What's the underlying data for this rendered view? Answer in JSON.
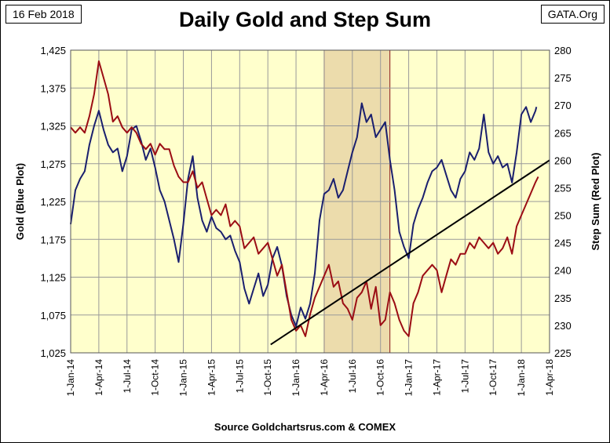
{
  "date_badge": "16 Feb 2018",
  "site_badge": "GATA.Org",
  "chart_data": {
    "type": "line",
    "title": "Daily Gold and Step Sum",
    "source": "Source Goldchartsrus.com & COMEX",
    "left_axis": {
      "label": "Gold   (Blue Plot)",
      "ylim": [
        1025,
        1425
      ],
      "ticks": [
        1025,
        1075,
        1125,
        1175,
        1225,
        1275,
        1325,
        1375,
        1425
      ],
      "tick_labels": [
        "1,025",
        "1,075",
        "1,125",
        "1,175",
        "1,225",
        "1,275",
        "1,325",
        "1,375",
        "1,425"
      ]
    },
    "right_axis": {
      "label": "Step Sum   (Red Plot)",
      "ylim": [
        225,
        280
      ],
      "ticks": [
        225,
        230,
        235,
        240,
        245,
        250,
        255,
        260,
        265,
        270,
        275,
        280
      ],
      "tick_labels": [
        "225",
        "230",
        "235",
        "240",
        "245",
        "250",
        "255",
        "260",
        "265",
        "270",
        "275",
        "280"
      ]
    },
    "x_axis": {
      "range_months": [
        0,
        51
      ],
      "tick_labels": [
        "1-Jan-14",
        "1-Apr-14",
        "1-Jul-14",
        "1-Oct-14",
        "1-Jan-15",
        "1-Apr-15",
        "1-Jul-15",
        "1-Oct-15",
        "1-Jan-16",
        "1-Apr-16",
        "1-Jul-16",
        "1-Oct-16",
        "1-Jan-17",
        "1-Apr-17",
        "1-Jul-17",
        "1-Oct-17",
        "1-Jan-18",
        "1-Apr-18"
      ]
    },
    "shaded_region": {
      "x_start": 27,
      "x_end": 34
    },
    "series": [
      {
        "name": "Gold (Blue Plot)",
        "axis": "left",
        "color": "#1a1f6e",
        "points": [
          [
            0,
            1195
          ],
          [
            0.5,
            1240
          ],
          [
            1,
            1255
          ],
          [
            1.5,
            1265
          ],
          [
            2,
            1300
          ],
          [
            2.5,
            1325
          ],
          [
            3,
            1345
          ],
          [
            3.5,
            1320
          ],
          [
            4,
            1300
          ],
          [
            4.5,
            1290
          ],
          [
            5,
            1295
          ],
          [
            5.5,
            1265
          ],
          [
            6,
            1285
          ],
          [
            6.5,
            1320
          ],
          [
            7,
            1325
          ],
          [
            7.5,
            1305
          ],
          [
            8,
            1280
          ],
          [
            8.5,
            1295
          ],
          [
            9,
            1270
          ],
          [
            9.5,
            1240
          ],
          [
            10,
            1225
          ],
          [
            10.5,
            1200
          ],
          [
            11,
            1175
          ],
          [
            11.5,
            1145
          ],
          [
            12,
            1195
          ],
          [
            12.5,
            1255
          ],
          [
            13,
            1285
          ],
          [
            13.5,
            1230
          ],
          [
            14,
            1200
          ],
          [
            14.5,
            1185
          ],
          [
            15,
            1205
          ],
          [
            15.5,
            1190
          ],
          [
            16,
            1185
          ],
          [
            16.5,
            1175
          ],
          [
            17,
            1180
          ],
          [
            17.5,
            1160
          ],
          [
            18,
            1145
          ],
          [
            18.5,
            1110
          ],
          [
            19,
            1090
          ],
          [
            19.5,
            1110
          ],
          [
            20,
            1130
          ],
          [
            20.5,
            1100
          ],
          [
            21,
            1115
          ],
          [
            21.5,
            1150
          ],
          [
            22,
            1165
          ],
          [
            22.5,
            1140
          ],
          [
            23,
            1100
          ],
          [
            23.5,
            1075
          ],
          [
            24,
            1060
          ],
          [
            24.5,
            1085
          ],
          [
            25,
            1070
          ],
          [
            25.5,
            1090
          ],
          [
            26,
            1130
          ],
          [
            26.5,
            1200
          ],
          [
            27,
            1235
          ],
          [
            27.5,
            1240
          ],
          [
            28,
            1255
          ],
          [
            28.5,
            1230
          ],
          [
            29,
            1240
          ],
          [
            29.5,
            1265
          ],
          [
            30,
            1290
          ],
          [
            30.5,
            1310
          ],
          [
            31,
            1355
          ],
          [
            31.5,
            1330
          ],
          [
            32,
            1340
          ],
          [
            32.5,
            1310
          ],
          [
            33,
            1320
          ],
          [
            33.5,
            1330
          ],
          [
            34,
            1280
          ],
          [
            34.5,
            1240
          ],
          [
            35,
            1185
          ],
          [
            35.5,
            1165
          ],
          [
            36,
            1150
          ],
          [
            36.5,
            1195
          ],
          [
            37,
            1215
          ],
          [
            37.5,
            1230
          ],
          [
            38,
            1250
          ],
          [
            38.5,
            1265
          ],
          [
            39,
            1270
          ],
          [
            39.5,
            1280
          ],
          [
            40,
            1260
          ],
          [
            40.5,
            1240
          ],
          [
            41,
            1230
          ],
          [
            41.5,
            1255
          ],
          [
            42,
            1265
          ],
          [
            42.5,
            1290
          ],
          [
            43,
            1280
          ],
          [
            43.5,
            1295
          ],
          [
            44,
            1340
          ],
          [
            44.5,
            1290
          ],
          [
            45,
            1275
          ],
          [
            45.5,
            1285
          ],
          [
            46,
            1270
          ],
          [
            46.5,
            1275
          ],
          [
            47,
            1250
          ],
          [
            47.5,
            1290
          ],
          [
            48,
            1340
          ],
          [
            48.5,
            1350
          ],
          [
            49,
            1330
          ],
          [
            49.5,
            1345
          ],
          [
            49.6,
            1350
          ]
        ]
      },
      {
        "name": "Step Sum (Red Plot)",
        "axis": "right",
        "color": "#9b0d14",
        "points": [
          [
            0,
            266
          ],
          [
            0.5,
            265
          ],
          [
            1,
            266
          ],
          [
            1.5,
            265
          ],
          [
            2,
            268
          ],
          [
            2.5,
            272
          ],
          [
            3,
            278
          ],
          [
            3.5,
            275
          ],
          [
            4,
            272
          ],
          [
            4.5,
            267
          ],
          [
            5,
            268
          ],
          [
            5.5,
            266
          ],
          [
            6,
            265
          ],
          [
            6.5,
            266
          ],
          [
            7,
            265
          ],
          [
            7.5,
            263
          ],
          [
            8,
            262
          ],
          [
            8.5,
            263
          ],
          [
            9,
            261
          ],
          [
            9.5,
            263
          ],
          [
            10,
            262
          ],
          [
            10.5,
            262
          ],
          [
            11,
            259
          ],
          [
            11.5,
            257
          ],
          [
            12,
            256
          ],
          [
            12.5,
            256
          ],
          [
            13,
            258
          ],
          [
            13.5,
            255
          ],
          [
            14,
            256
          ],
          [
            14.5,
            253
          ],
          [
            15,
            250
          ],
          [
            15.5,
            251
          ],
          [
            16,
            250
          ],
          [
            16.5,
            252
          ],
          [
            17,
            248
          ],
          [
            17.5,
            249
          ],
          [
            18,
            248
          ],
          [
            18.5,
            244
          ],
          [
            19,
            245
          ],
          [
            19.5,
            246
          ],
          [
            20,
            243
          ],
          [
            20.5,
            244
          ],
          [
            21,
            245
          ],
          [
            21.5,
            242
          ],
          [
            22,
            239
          ],
          [
            22.5,
            241
          ],
          [
            23,
            236
          ],
          [
            23.5,
            231
          ],
          [
            24,
            229
          ],
          [
            24.5,
            230
          ],
          [
            25,
            228
          ],
          [
            25.5,
            232
          ],
          [
            26,
            235
          ],
          [
            26.5,
            237
          ],
          [
            27,
            239
          ],
          [
            27.5,
            241
          ],
          [
            28,
            237
          ],
          [
            28.5,
            238
          ],
          [
            29,
            234
          ],
          [
            29.5,
            233
          ],
          [
            30,
            231
          ],
          [
            30.5,
            235
          ],
          [
            31,
            236
          ],
          [
            31.5,
            238
          ],
          [
            32,
            233
          ],
          [
            32.5,
            237
          ],
          [
            33,
            230
          ],
          [
            33.5,
            231
          ],
          [
            34,
            236
          ],
          [
            34.5,
            234
          ],
          [
            35,
            231
          ],
          [
            35.5,
            229
          ],
          [
            36,
            228
          ],
          [
            36.5,
            234
          ],
          [
            37,
            236
          ],
          [
            37.5,
            239
          ],
          [
            38,
            240
          ],
          [
            38.5,
            241
          ],
          [
            39,
            240
          ],
          [
            39.5,
            236
          ],
          [
            40,
            239
          ],
          [
            40.5,
            242
          ],
          [
            41,
            241
          ],
          [
            41.5,
            243
          ],
          [
            42,
            243
          ],
          [
            42.5,
            245
          ],
          [
            43,
            244
          ],
          [
            43.5,
            246
          ],
          [
            44,
            245
          ],
          [
            44.5,
            244
          ],
          [
            45,
            245
          ],
          [
            45.5,
            243
          ],
          [
            46,
            244
          ],
          [
            46.5,
            246
          ],
          [
            47,
            243
          ],
          [
            47.5,
            248
          ],
          [
            48,
            250
          ],
          [
            48.5,
            252
          ],
          [
            49,
            254
          ],
          [
            49.5,
            256
          ],
          [
            49.8,
            257
          ]
        ]
      }
    ],
    "trend_line": {
      "axis": "right",
      "color": "#000000",
      "start": [
        21.3,
        226.5
      ],
      "end": [
        51,
        260
      ]
    }
  }
}
